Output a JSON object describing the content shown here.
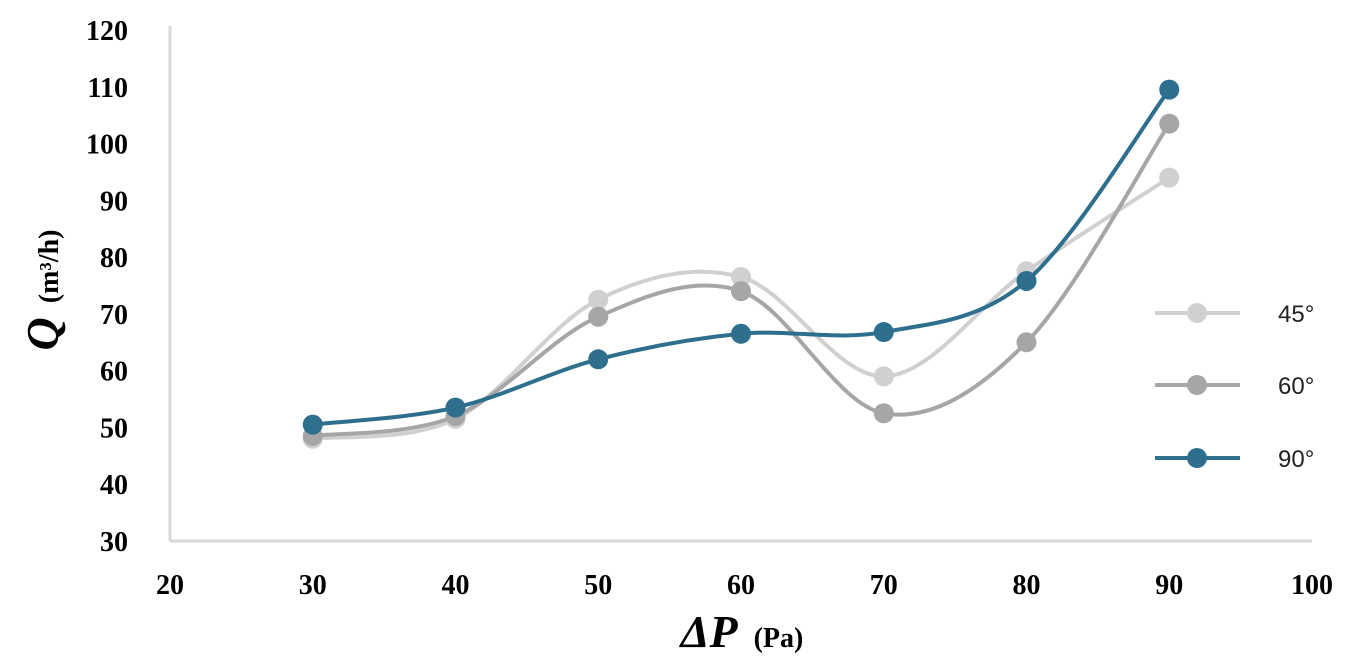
{
  "chart_data": {
    "type": "line",
    "smooth": true,
    "x": [
      30,
      40,
      50,
      60,
      70,
      80,
      90
    ],
    "xlim": [
      20,
      100
    ],
    "ylim": [
      30,
      120
    ],
    "xticks": [
      "20",
      "30",
      "40",
      "50",
      "60",
      "70",
      "80",
      "90",
      "100"
    ],
    "yticks": [
      "30",
      "40",
      "50",
      "60",
      "70",
      "80",
      "90",
      "100",
      "110",
      "120"
    ],
    "grid": false,
    "legend_position": "right",
    "xlabel": {
      "symbol": "ΔP",
      "unit": "(Pa)"
    },
    "ylabel": {
      "symbol": "Q",
      "unit": "(m³/h)"
    },
    "series": [
      {
        "name": "45°",
        "color": "#d0d0d0",
        "values": [
          48,
          51.5,
          72.5,
          76.5,
          59,
          77.5,
          94
        ]
      },
      {
        "name": "60°",
        "color": "#a6a6a6",
        "values": [
          48.5,
          52,
          69.5,
          74,
          52.5,
          65,
          103.5
        ]
      },
      {
        "name": "90°",
        "color": "#2e6f8e",
        "values": [
          50.5,
          53.5,
          62,
          66.5,
          66.8,
          75.8,
          109.5
        ]
      }
    ]
  }
}
